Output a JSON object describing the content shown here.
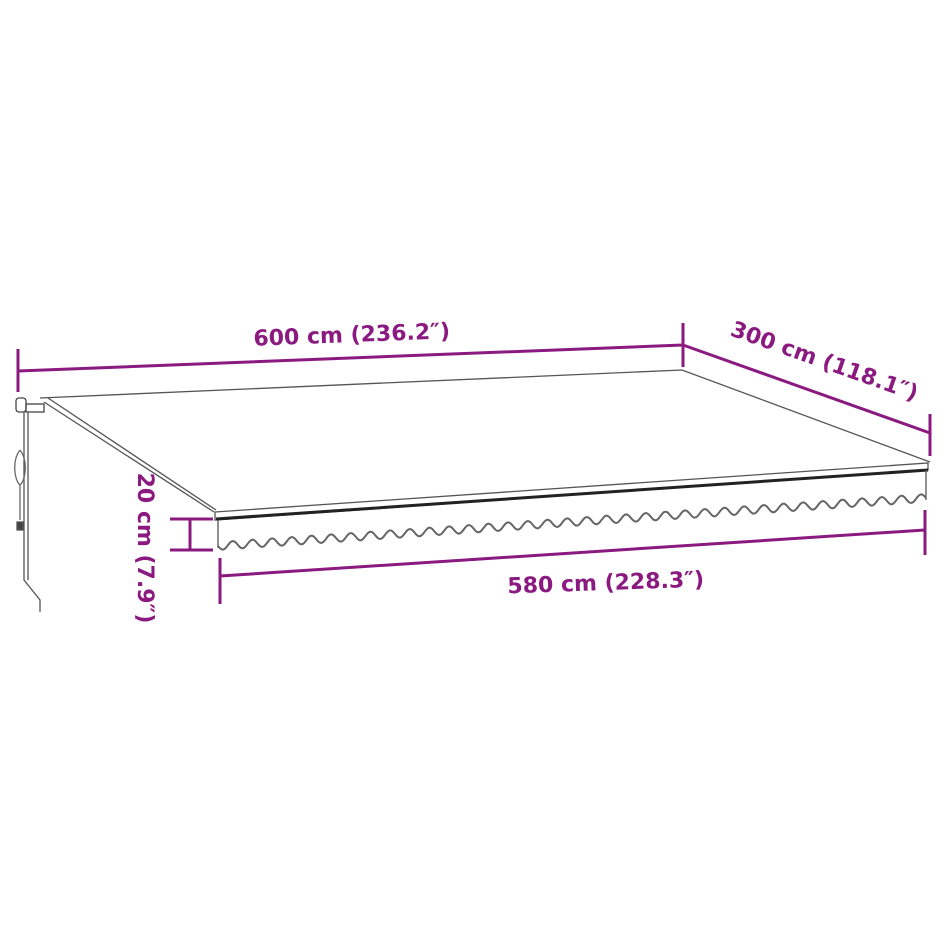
{
  "colors": {
    "dimension": "#8b1a80",
    "drawing": "#555555",
    "bar": "#222222"
  },
  "dimensions": {
    "width_top": "600 cm (236.2″)",
    "depth": "300 cm (118.1″)",
    "valance_height": "20 cm (7.9″)",
    "width_front": "580 cm (228.3″)"
  }
}
